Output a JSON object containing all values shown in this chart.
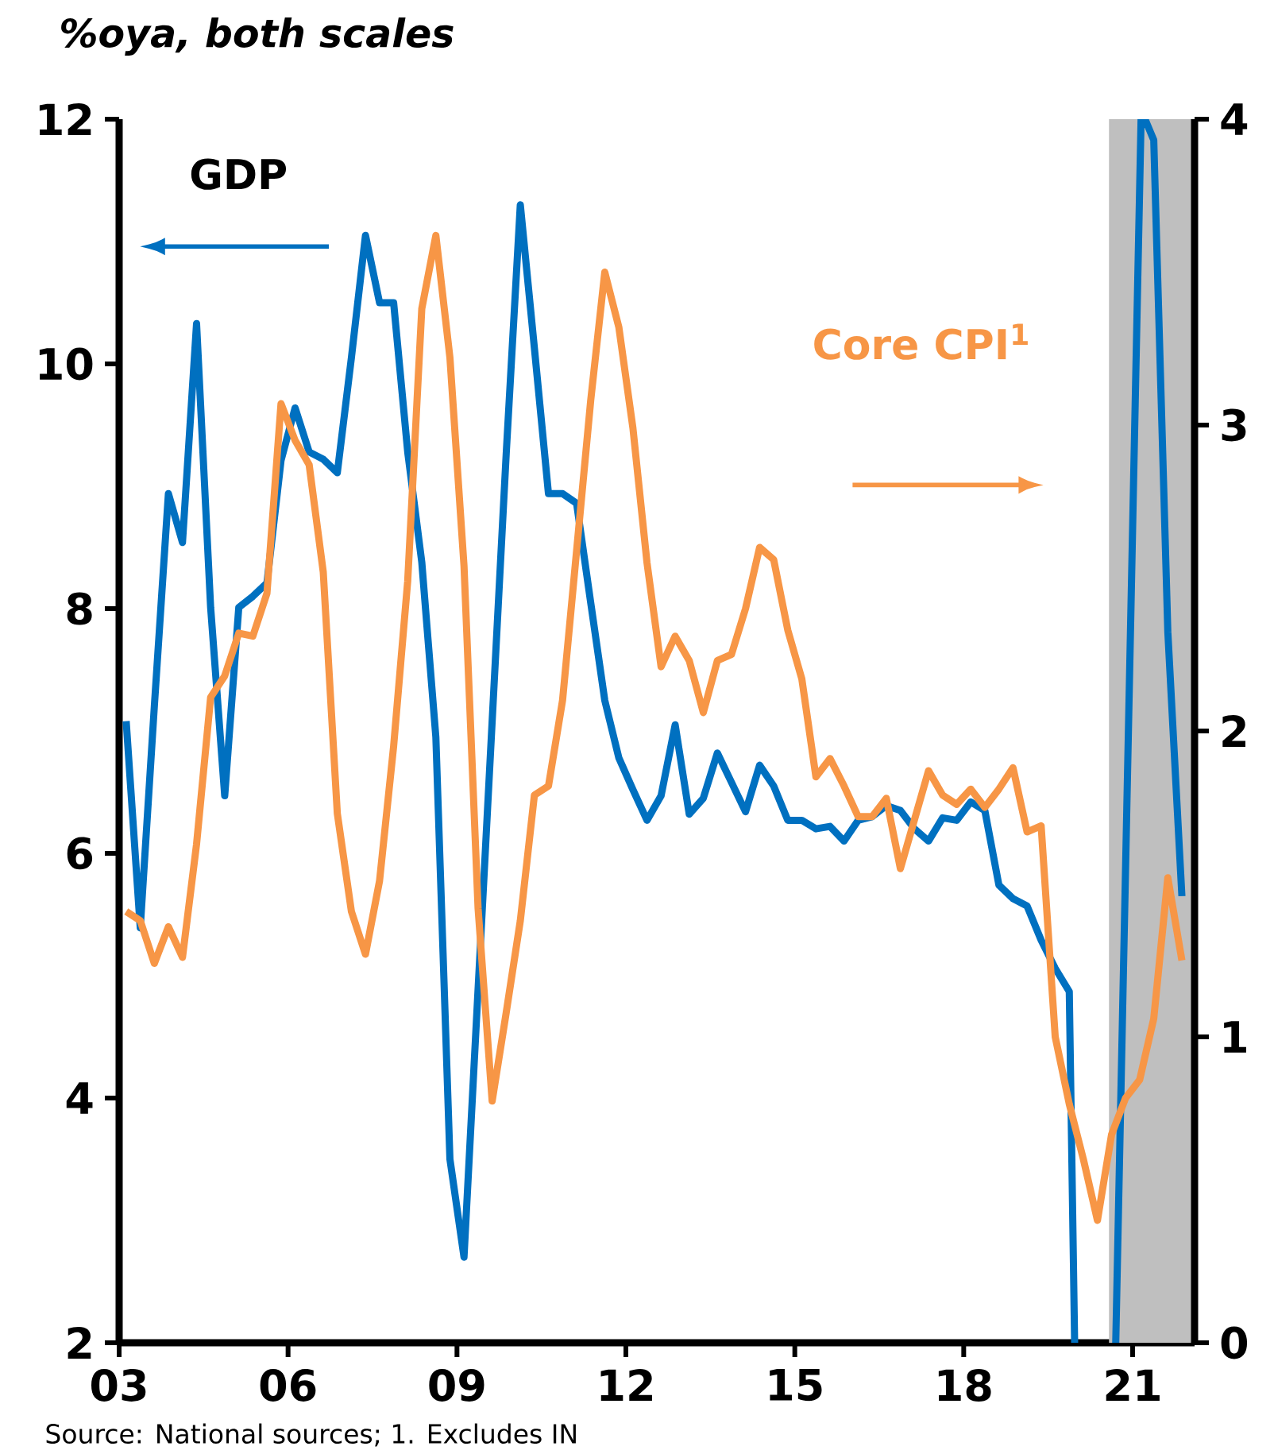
{
  "chart_data": {
    "type": "line",
    "ylabel": "%oya, both scales",
    "annotations": [
      "Source: National sources; 1. Excludes IN"
    ],
    "xlim": [
      2003,
      2022.1
    ],
    "xticks": [
      {
        "value": 2003,
        "label": "03"
      },
      {
        "value": 2006,
        "label": "06"
      },
      {
        "value": 2009,
        "label": "09"
      },
      {
        "value": 2012,
        "label": "12"
      },
      {
        "value": 2015,
        "label": "15"
      },
      {
        "value": 2018,
        "label": "18"
      },
      {
        "value": 2021,
        "label": "21"
      }
    ],
    "ylim": [
      2,
      12
    ],
    "yticks": [
      2,
      4,
      6,
      8,
      10,
      12
    ],
    "y2lim": [
      0,
      4
    ],
    "y2ticks": [
      0,
      1,
      2,
      3,
      4
    ],
    "bands": [
      {
        "axis": "x",
        "from": 2020.58,
        "to": 2022.1,
        "color": "#bfbfbf"
      }
    ],
    "series": [
      {
        "name": "GDP",
        "color": "#0070c0",
        "x": [
          2003.125,
          2003.375,
          2003.625,
          2003.875,
          2004.125,
          2004.375,
          2004.625,
          2004.875,
          2005.125,
          2005.375,
          2005.625,
          2005.875,
          2006.125,
          2006.375,
          2006.625,
          2006.875,
          2007.125,
          2007.375,
          2007.625,
          2007.875,
          2008.125,
          2008.375,
          2008.625,
          2008.875,
          2009.125,
          2009.375,
          2009.625,
          2009.875,
          2010.125,
          2010.375,
          2010.625,
          2010.875,
          2011.125,
          2011.375,
          2011.625,
          2011.875,
          2012.125,
          2012.375,
          2012.625,
          2012.875,
          2013.125,
          2013.375,
          2013.625,
          2013.875,
          2014.125,
          2014.375,
          2014.625,
          2014.875,
          2015.125,
          2015.375,
          2015.625,
          2015.875,
          2016.125,
          2016.375,
          2016.625,
          2016.875,
          2017.125,
          2017.375,
          2017.625,
          2017.875,
          2018.125,
          2018.375,
          2018.625,
          2018.875,
          2019.125,
          2019.375,
          2019.625,
          2019.875,
          2019.97,
          2020.3,
          2020.7,
          2021.15,
          2021.18,
          2021.22,
          2021.375,
          2021.625,
          2021.875
        ],
        "values": [
          7.08,
          5.39,
          7.2,
          8.94,
          8.54,
          10.33,
          8.01,
          6.47,
          8.01,
          8.1,
          8.21,
          9.21,
          9.64,
          9.28,
          9.22,
          9.11,
          10.05,
          11.05,
          10.5,
          10.5,
          9.28,
          8.38,
          6.95,
          3.5,
          2.7,
          4.89,
          7.08,
          9.27,
          11.3,
          10.13,
          8.94,
          8.94,
          8.86,
          8.05,
          7.25,
          6.78,
          6.52,
          6.27,
          6.47,
          7.05,
          6.32,
          6.45,
          6.82,
          6.58,
          6.34,
          6.72,
          6.55,
          6.27,
          6.27,
          6.2,
          6.22,
          6.1,
          6.27,
          6.3,
          6.39,
          6.35,
          6.2,
          6.1,
          6.29,
          6.27,
          6.42,
          6.35,
          5.74,
          5.63,
          5.57,
          5.29,
          5.06,
          4.87,
          2,
          null,
          2,
          12,
          null,
          12,
          11.83,
          7.81,
          5.65
        ]
      },
      {
        "name": "Core CPI$^{1}$",
        "color": "#f79646",
        "axis": "y2",
        "x": [
          2003.125,
          2003.375,
          2003.625,
          2003.875,
          2004.125,
          2004.375,
          2004.625,
          2004.875,
          2005.125,
          2005.375,
          2005.625,
          2005.875,
          2006.125,
          2006.375,
          2006.625,
          2006.875,
          2007.125,
          2007.375,
          2007.625,
          2007.875,
          2008.125,
          2008.375,
          2008.625,
          2008.875,
          2009.125,
          2009.375,
          2009.625,
          2009.875,
          2010.125,
          2010.375,
          2010.625,
          2010.875,
          2011.125,
          2011.375,
          2011.625,
          2011.875,
          2012.125,
          2012.375,
          2012.625,
          2012.875,
          2013.125,
          2013.375,
          2013.625,
          2013.875,
          2014.125,
          2014.375,
          2014.625,
          2014.875,
          2015.125,
          2015.375,
          2015.625,
          2015.875,
          2016.125,
          2016.375,
          2016.625,
          2016.875,
          2017.125,
          2017.375,
          2017.625,
          2017.875,
          2018.125,
          2018.375,
          2018.625,
          2018.875,
          2019.125,
          2019.375,
          2019.625,
          2019.875,
          2020.125,
          2020.375,
          2020.625,
          2020.875,
          2021.125,
          2021.375,
          2021.625,
          2021.875
        ],
        "values": [
          1.41,
          1.38,
          1.24,
          1.36,
          1.26,
          1.63,
          2.11,
          2.18,
          2.32,
          2.31,
          2.45,
          3.07,
          2.95,
          2.87,
          2.52,
          1.73,
          1.41,
          1.27,
          1.51,
          1.95,
          2.49,
          3.38,
          3.62,
          3.22,
          2.54,
          1.42,
          0.79,
          1.08,
          1.38,
          1.79,
          1.82,
          2.1,
          2.59,
          3.08,
          3.5,
          3.32,
          2.99,
          2.55,
          2.21,
          2.31,
          2.23,
          2.06,
          2.23,
          2.25,
          2.4,
          2.6,
          2.56,
          2.33,
          2.17,
          1.85,
          1.91,
          1.82,
          1.72,
          1.72,
          1.78,
          1.55,
          1.71,
          1.87,
          1.79,
          1.76,
          1.81,
          1.75,
          1.81,
          1.88,
          1.67,
          1.69,
          1.0,
          0.78,
          0.6,
          0.4,
          0.68,
          0.8,
          0.86,
          1.06,
          1.52,
          1.25
        ]
      }
    ]
  }
}
